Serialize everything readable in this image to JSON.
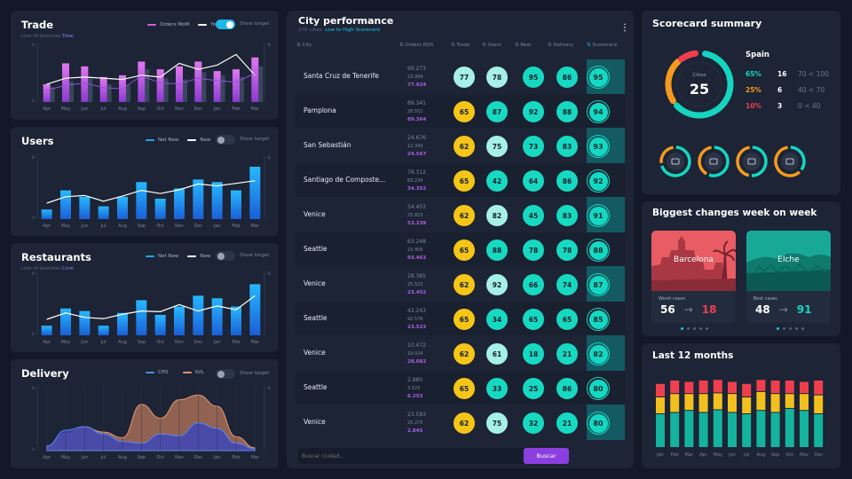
{
  "months": [
    "Apr",
    "May",
    "Jun",
    "Jul",
    "Aug",
    "Sep",
    "Oct",
    "Nov",
    "Dec",
    "Jan",
    "Feb",
    "Mar"
  ],
  "months_last": [
    "Jan",
    "Feb",
    "Mar",
    "Apr",
    "May",
    "Jun",
    "Jul",
    "Aug",
    "Sep",
    "Oct",
    "Nov",
    "Dec"
  ],
  "trade": {
    "title": "Trade",
    "subtitle": "Line of business",
    "subtitle_value": "Total",
    "legend": [
      "Orders MoM",
      "YoY"
    ],
    "show_target": "Show target",
    "toggle_on": true
  },
  "users": {
    "title": "Users",
    "legend": [
      "Net New",
      "New"
    ],
    "show_target": "Show target",
    "toggle_on": false
  },
  "restaurants": {
    "title": "Restaurants",
    "subtitle": "Line of business",
    "subtitle_value": "Core",
    "legend": [
      "Net New",
      "New"
    ],
    "show_target": "Show target",
    "toggle_on": false
  },
  "delivery": {
    "title": "Delivery",
    "legend": [
      "CPO",
      "SVL"
    ],
    "show_target": "Show target",
    "toggle_on": false
  },
  "city": {
    "title": "City performance",
    "subtitle_count": "278 cities",
    "subtitle_sort": "Low to High Scorecard",
    "menu_icon": "more-vertical-icon",
    "headers": [
      "City",
      "Orders RDS",
      "Trade",
      "Users",
      "Rest.",
      "Delivery",
      "Scorecard"
    ],
    "search_placeholder": "Buscar ciudad...",
    "search_button": "Buscar",
    "colors": {
      "yellow": "#f5c518",
      "mint": "#a6f0e8",
      "teal": "#17d9c2",
      "aqua": "#10e0d0"
    },
    "rows": [
      {
        "name": "Santa Cruz de Tenerife",
        "v1": "99.273",
        "v2": "23.999",
        "v3": "77.924",
        "trade": 77,
        "users": 78,
        "rest": 95,
        "delivery": 86,
        "score": 95,
        "c": [
          "mint",
          "mint",
          "teal",
          "teal"
        ]
      },
      {
        "name": "Pamplona",
        "v1": "89.341",
        "v2": "28.552",
        "v3": "89.364",
        "trade": 65,
        "users": 87,
        "rest": 92,
        "delivery": 88,
        "score": 94,
        "c": [
          "yellow",
          "teal",
          "teal",
          "teal"
        ]
      },
      {
        "name": "San Sebastián",
        "v1": "24.676",
        "v2": "12.343",
        "v3": "24.567",
        "trade": 62,
        "users": 75,
        "rest": 73,
        "delivery": 83,
        "score": 93,
        "c": [
          "yellow",
          "mint",
          "teal",
          "teal"
        ]
      },
      {
        "name": "Santiago de Composte...",
        "v1": "78.312",
        "v2": "83.234",
        "v3": "34.352",
        "trade": 65,
        "users": 42,
        "rest": 64,
        "delivery": 86,
        "score": 92,
        "c": [
          "yellow",
          "teal",
          "teal",
          "teal"
        ]
      },
      {
        "name": "Venice",
        "v1": "54.453",
        "v2": "25.823",
        "v3": "53.239",
        "trade": 62,
        "users": 82,
        "rest": 45,
        "delivery": 83,
        "score": 91,
        "c": [
          "yellow",
          "mint",
          "teal",
          "teal"
        ]
      },
      {
        "name": "Seattle",
        "v1": "63.248",
        "v2": "23.456",
        "v3": "93.463",
        "trade": 65,
        "users": 88,
        "rest": 78,
        "delivery": 78,
        "score": 88,
        "c": [
          "yellow",
          "teal",
          "teal",
          "teal"
        ]
      },
      {
        "name": "Venice",
        "v1": "28.385",
        "v2": "25.523",
        "v3": "23.452",
        "trade": 62,
        "users": 92,
        "rest": 66,
        "delivery": 74,
        "score": 87,
        "c": [
          "yellow",
          "mint",
          "teal",
          "teal"
        ]
      },
      {
        "name": "Seattle",
        "v1": "42.243",
        "v2": "92.576",
        "v3": "23.523",
        "trade": 65,
        "users": 34,
        "rest": 65,
        "delivery": 65,
        "score": 85,
        "c": [
          "yellow",
          "teal",
          "teal",
          "teal"
        ]
      },
      {
        "name": "Venice",
        "v1": "10.472",
        "v2": "19.024",
        "v3": "28.082",
        "trade": 62,
        "users": 61,
        "rest": 18,
        "delivery": 21,
        "score": 82,
        "c": [
          "yellow",
          "mint",
          "teal",
          "teal"
        ]
      },
      {
        "name": "Seattle",
        "v1": "2.880",
        "v2": "3.523",
        "v3": "6.253",
        "trade": 65,
        "users": 33,
        "rest": 25,
        "delivery": 86,
        "score": 80,
        "c": [
          "yellow",
          "teal",
          "teal",
          "teal"
        ]
      },
      {
        "name": "Venice",
        "v1": "23.583",
        "v2": "25.275",
        "v3": "2.845",
        "trade": 62,
        "users": 75,
        "rest": 32,
        "delivery": 21,
        "score": 80,
        "c": [
          "yellow",
          "mint",
          "teal",
          "teal"
        ]
      }
    ]
  },
  "scorecard": {
    "title": "Scorecard summary",
    "donut_label": "Cities",
    "donut_value": "25",
    "country": "Spain",
    "stats": [
      {
        "pct": "65%",
        "count": "16",
        "range": "70 < 100",
        "color": "#15d5c0"
      },
      {
        "pct": "25%",
        "count": "6",
        "range": "40 < 70",
        "color": "#f59a1e"
      },
      {
        "pct": "10%",
        "count": "3",
        "range": "0 < 40",
        "color": "#ef3f4f"
      }
    ],
    "mini": [
      {
        "icon": "wallet-icon",
        "teal": 0.7,
        "orange": 0.3
      },
      {
        "icon": "user-icon",
        "teal": 0.55,
        "orange": 0.45
      },
      {
        "icon": "chef-hat-icon",
        "teal": 0.5,
        "orange": 0.5
      },
      {
        "icon": "scooter-icon",
        "teal": 0.35,
        "orange": 0.65
      }
    ]
  },
  "changes": {
    "title": "Biggest changes week on week",
    "cards": [
      {
        "city": "Barcelona",
        "label": "Worst cases",
        "from": "56",
        "to": "18",
        "to_color": "#ef3f4f"
      },
      {
        "city": "Elche",
        "label": "Best cases",
        "from": "48",
        "to": "91",
        "to_color": "#15d5c0"
      }
    ]
  },
  "last12": {
    "title": "Last 12 months"
  },
  "chart_data": [
    {
      "type": "bar",
      "title": "Trade",
      "categories": [
        "Apr",
        "May",
        "Jun",
        "Jul",
        "Aug",
        "Sep",
        "Oct",
        "Nov",
        "Dec",
        "Jan",
        "Feb",
        "Mar"
      ],
      "series": [
        {
          "name": "Orders MoM",
          "values": [
            30,
            65,
            60,
            42,
            45,
            68,
            55,
            60,
            68,
            52,
            55,
            75
          ]
        },
        {
          "name": "YoY",
          "values": [
            25,
            35,
            40,
            30,
            28,
            55,
            40,
            38,
            50,
            45,
            42,
            60
          ]
        }
      ],
      "line": [
        30,
        40,
        42,
        40,
        38,
        45,
        42,
        65,
        55,
        62,
        80,
        45
      ],
      "ylim": [
        0,
        100
      ]
    },
    {
      "type": "bar",
      "title": "Users",
      "categories": [
        "Apr",
        "May",
        "Jun",
        "Jul",
        "Aug",
        "Sep",
        "Oct",
        "Nov",
        "Dec",
        "Jan",
        "Feb",
        "Mar"
      ],
      "series": [
        {
          "name": "Net New",
          "values": [
            15,
            45,
            35,
            20,
            35,
            58,
            32,
            48,
            62,
            58,
            45,
            82
          ]
        },
        {
          "name": "New",
          "values": [
            25,
            35,
            37,
            28,
            36,
            45,
            40,
            46,
            55,
            52,
            56,
            60
          ]
        }
      ],
      "ylim": [
        0,
        100
      ]
    },
    {
      "type": "bar",
      "title": "Restaurants",
      "categories": [
        "Apr",
        "May",
        "Jun",
        "Jul",
        "Aug",
        "Sep",
        "Oct",
        "Nov",
        "Dec",
        "Jan",
        "Feb",
        "Mar"
      ],
      "series": [
        {
          "name": "Net New",
          "values": [
            15,
            42,
            38,
            15,
            35,
            55,
            32,
            45,
            62,
            58,
            45,
            80
          ]
        },
        {
          "name": "New",
          "values": [
            25,
            35,
            28,
            26,
            33,
            38,
            37,
            48,
            38,
            46,
            40,
            62
          ]
        }
      ],
      "ylim": [
        0,
        100
      ]
    },
    {
      "type": "area",
      "title": "Delivery",
      "categories": [
        "Apr",
        "May",
        "Jun",
        "Jul",
        "Aug",
        "Sep",
        "Oct",
        "Nov",
        "Dec",
        "Jan",
        "Feb",
        "Mar"
      ],
      "series": [
        {
          "name": "CPO",
          "values": [
            5,
            22,
            26,
            18,
            10,
            8,
            18,
            16,
            30,
            24,
            8,
            2
          ]
        },
        {
          "name": "SVL",
          "values": [
            5,
            18,
            25,
            20,
            14,
            50,
            35,
            55,
            60,
            48,
            15,
            3
          ]
        }
      ],
      "ylim": [
        0,
        70
      ]
    },
    {
      "type": "bar",
      "title": "Last 12 months",
      "categories": [
        "Jan",
        "Feb",
        "Mar",
        "Apr",
        "May",
        "Jun",
        "Jul",
        "Aug",
        "Sep",
        "Oct",
        "Nov",
        "Dec"
      ],
      "series": [
        {
          "name": "",
          "values": [
            50,
            52,
            55,
            52,
            56,
            52,
            50,
            55,
            52,
            58,
            55,
            50
          ]
        },
        {
          "name": "",
          "values": [
            25,
            28,
            25,
            28,
            25,
            28,
            25,
            28,
            28,
            22,
            25,
            28
          ]
        },
        {
          "name": "",
          "values": [
            20,
            20,
            18,
            20,
            20,
            18,
            20,
            18,
            20,
            20,
            18,
            22
          ]
        }
      ],
      "ylim": [
        0,
        100
      ]
    }
  ]
}
